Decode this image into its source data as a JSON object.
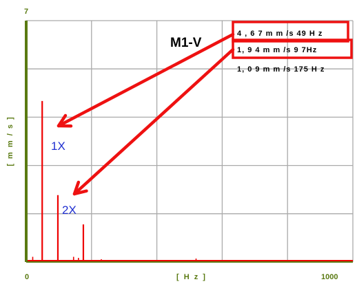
{
  "chart_data": {
    "type": "line",
    "title": "M1-V",
    "xlabel": "[ H z ]",
    "ylabel": "[ m m / s ]",
    "xlim": [
      0,
      1000
    ],
    "ylim": [
      0,
      7
    ],
    "x_ticks_shown": [
      "0",
      "1000"
    ],
    "y_ticks_shown": [
      "7"
    ],
    "grid": true,
    "colors": {
      "spectrum": "#ee0000",
      "axis": "#5a7a12",
      "grid": "#aaaaaa",
      "marker_text": "#1f2fd0",
      "annotation": "#ee1111"
    },
    "peaks": [
      {
        "freq": 49,
        "amplitude": 4.67,
        "label": "4 , 6 7 m m /s 49 H z",
        "marker": "1X",
        "highlighted": true
      },
      {
        "freq": 97,
        "amplitude": 1.94,
        "label": "1, 9 4  m m /s  9 7Hz",
        "marker": "2X",
        "highlighted": true
      },
      {
        "freq": 175,
        "amplitude": 1.09,
        "label": "1, 0 9 m m /s 175 H z",
        "marker": "",
        "highlighted": false
      }
    ],
    "minor_peaks": [
      {
        "freq": 20,
        "amplitude": 0.15
      },
      {
        "freq": 145,
        "amplitude": 0.15
      },
      {
        "freq": 160,
        "amplitude": 0.12
      },
      {
        "freq": 230,
        "amplitude": 0.08
      },
      {
        "freq": 520,
        "amplitude": 0.1
      }
    ]
  }
}
